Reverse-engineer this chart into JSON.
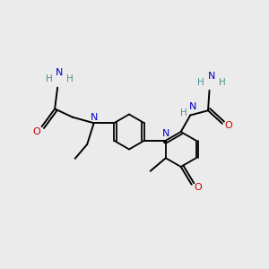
{
  "background_color": "#ebebeb",
  "bond_color": "#000000",
  "N_color": "#0000cc",
  "O_color": "#cc0000",
  "H_color": "#4a9090",
  "figsize": [
    3.0,
    3.0
  ],
  "dpi": 100,
  "xlim": [
    0,
    10
  ],
  "ylim": [
    0,
    10
  ]
}
